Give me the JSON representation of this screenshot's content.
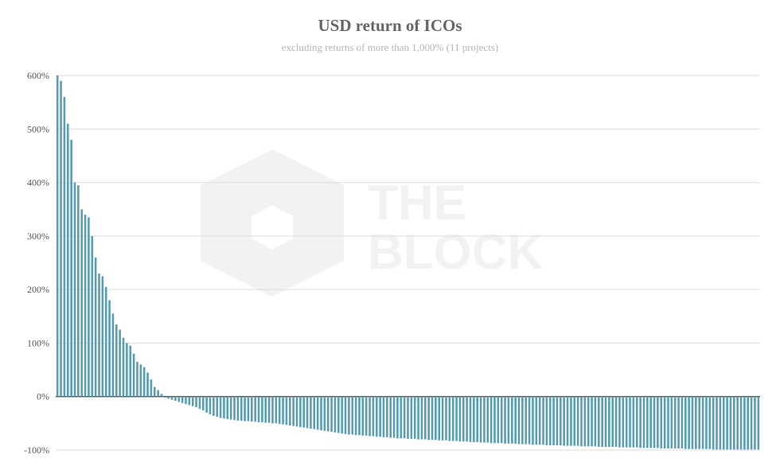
{
  "chart_data": {
    "type": "bar",
    "title": "USD return of ICOs",
    "subtitle": "excluding returns of more than 1,000% (11 projects)",
    "xlabel": "",
    "ylabel": "",
    "ylim": [
      -100,
      600
    ],
    "yticks": [
      "600%",
      "500%",
      "400%",
      "300%",
      "200%",
      "100%",
      "0%",
      "-100%"
    ],
    "ytick_values": [
      600,
      500,
      400,
      300,
      200,
      100,
      0,
      -100
    ],
    "grid": true,
    "legend": "none",
    "bar_color": "#5b9fb7",
    "sorted": "descending",
    "values": [
      600,
      590,
      560,
      510,
      480,
      400,
      395,
      350,
      340,
      335,
      300,
      260,
      230,
      225,
      205,
      180,
      155,
      135,
      125,
      110,
      100,
      95,
      80,
      65,
      60,
      55,
      45,
      32,
      18,
      12,
      5,
      -2,
      -4,
      -6,
      -8,
      -10,
      -12,
      -14,
      -16,
      -18,
      -20,
      -23,
      -26,
      -30,
      -33,
      -36,
      -38,
      -40,
      -41,
      -42,
      -43,
      -44,
      -45,
      -45,
      -46,
      -46,
      -47,
      -47,
      -48,
      -48,
      -49,
      -49,
      -50,
      -50,
      -51,
      -52,
      -53,
      -54,
      -55,
      -56,
      -57,
      -58,
      -59,
      -60,
      -61,
      -62,
      -63,
      -64,
      -65,
      -66,
      -67,
      -68,
      -69,
      -70,
      -71,
      -71,
      -72,
      -72,
      -73,
      -73,
      -74,
      -74,
      -75,
      -75,
      -76,
      -76,
      -77,
      -77,
      -78,
      -78,
      -78,
      -79,
      -79,
      -79,
      -80,
      -80,
      -80,
      -81,
      -81,
      -81,
      -82,
      -82,
      -82,
      -83,
      -83,
      -83,
      -84,
      -84,
      -84,
      -85,
      -85,
      -85,
      -86,
      -86,
      -86,
      -87,
      -87,
      -87,
      -87,
      -88,
      -88,
      -88,
      -88,
      -89,
      -89,
      -89,
      -89,
      -90,
      -90,
      -90,
      -90,
      -91,
      -91,
      -91,
      -91,
      -91,
      -92,
      -92,
      -92,
      -92,
      -92,
      -93,
      -93,
      -93,
      -93,
      -93,
      -94,
      -94,
      -94,
      -94,
      -94,
      -94,
      -95,
      -95,
      -95,
      -95,
      -95,
      -95,
      -96,
      -96,
      -96,
      -96,
      -96,
      -96,
      -97,
      -97,
      -97,
      -97,
      -97,
      -97,
      -97,
      -98,
      -98,
      -98,
      -98,
      -98,
      -98,
      -98,
      -98,
      -99,
      -99,
      -99,
      -99,
      -99,
      -99,
      -99,
      -99,
      -99,
      -99,
      -99,
      -99,
      -99,
      -99
    ]
  },
  "watermark": {
    "line1": "THE",
    "line2": "BLOCK"
  }
}
